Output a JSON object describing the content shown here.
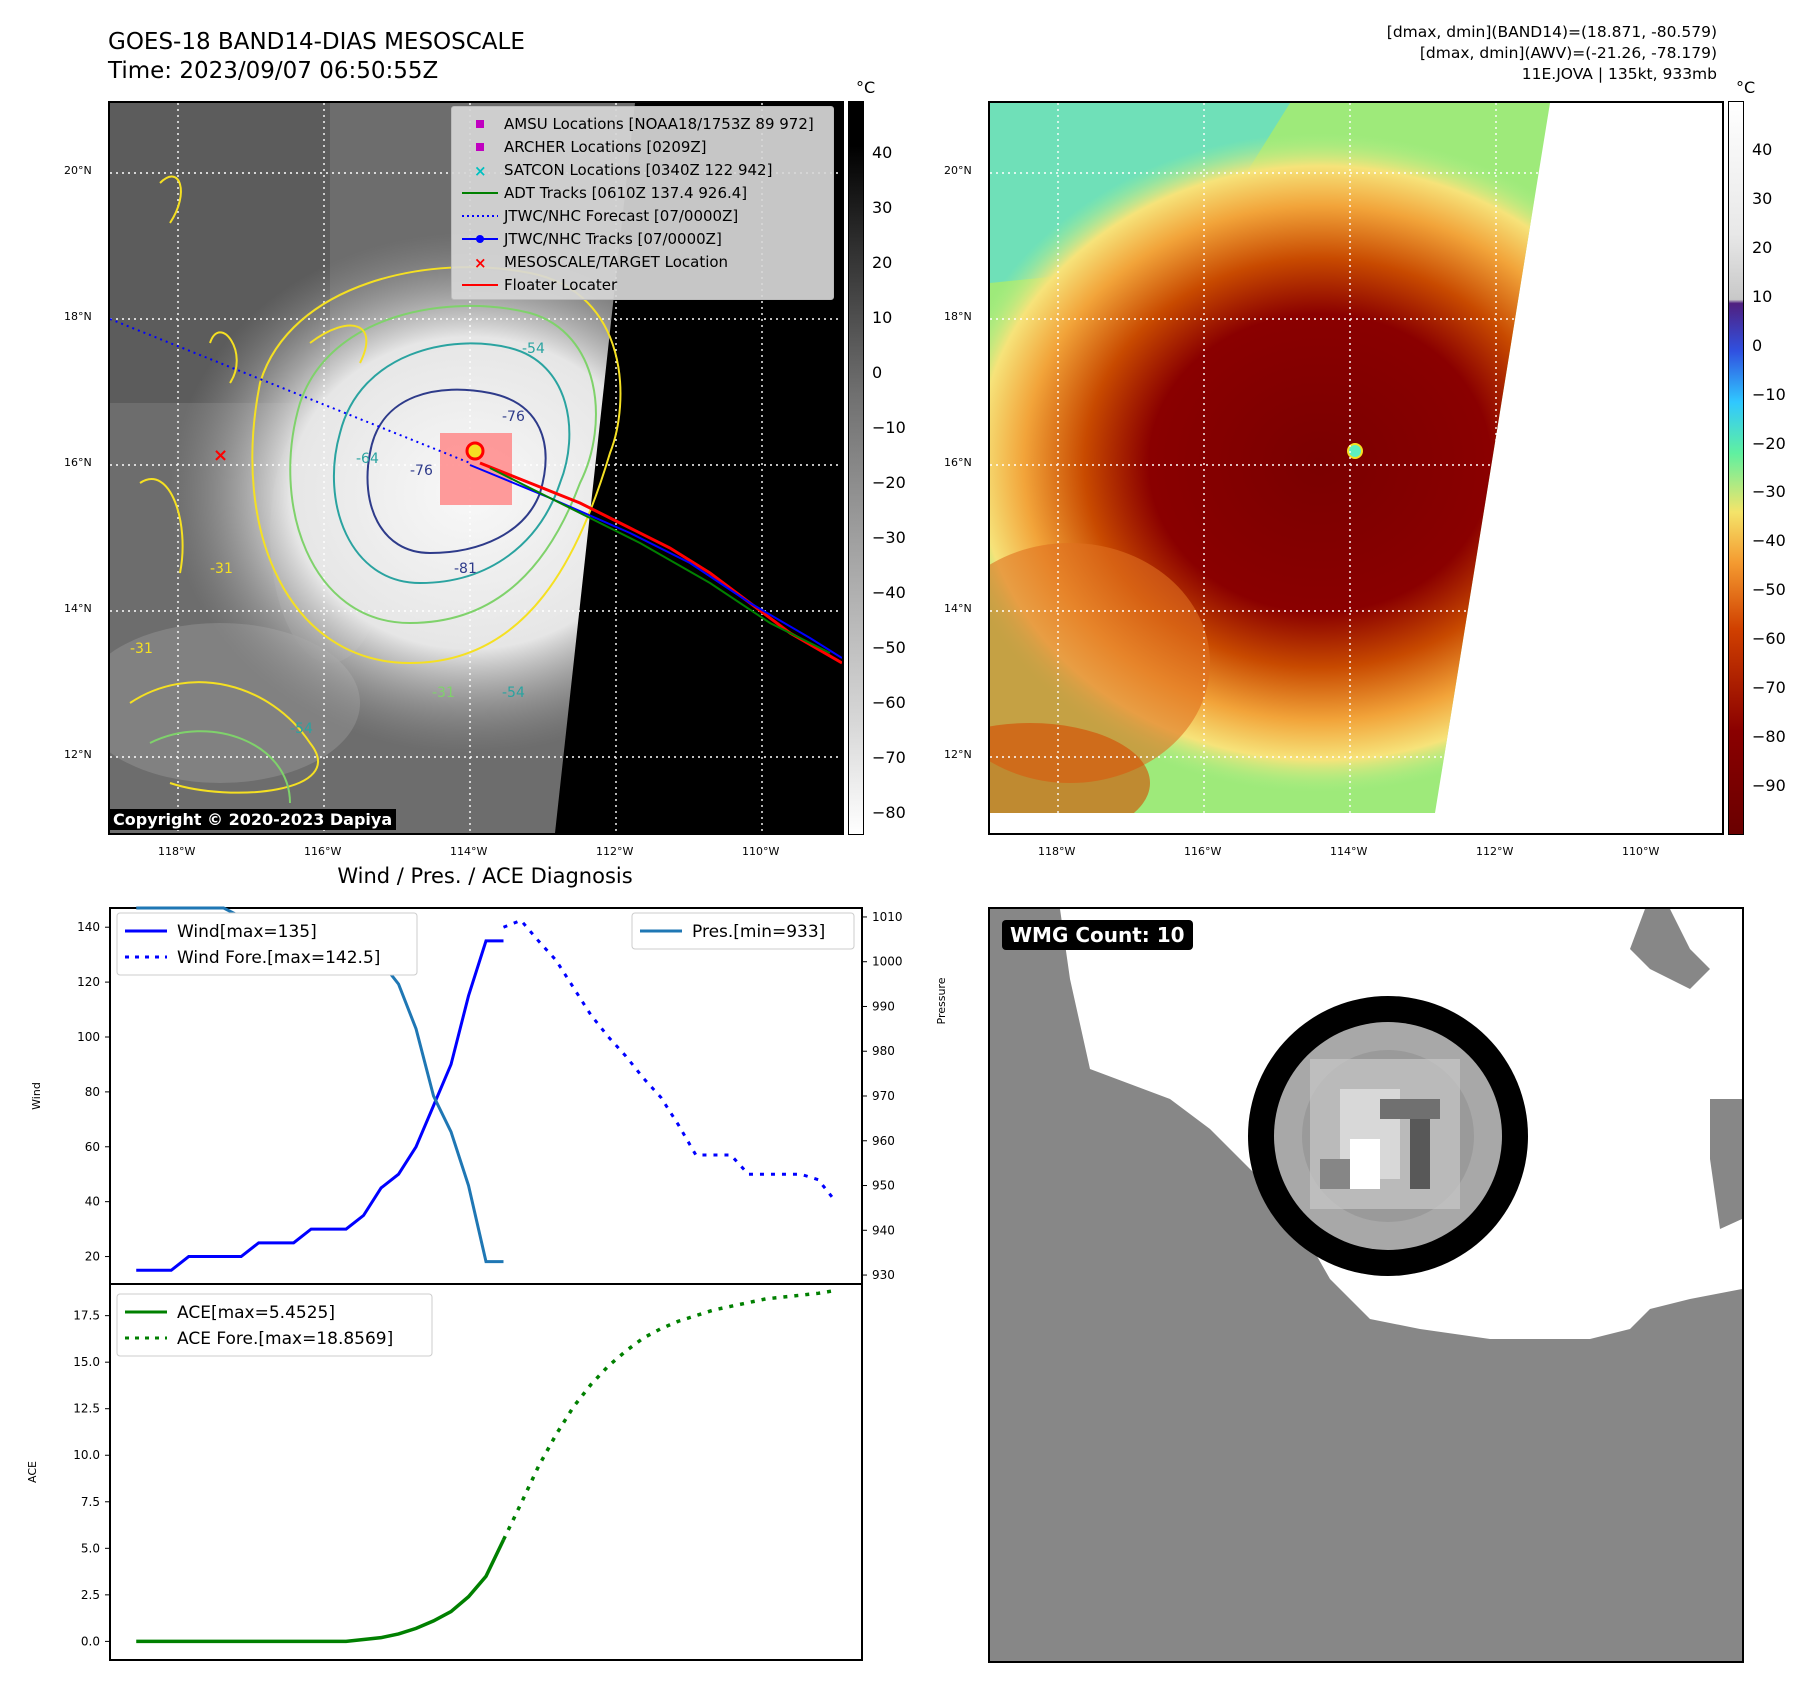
{
  "header": {
    "title_line1": "GOES-18 BAND14-DIAS MESOSCALE",
    "title_line2": "Time: 2023/09/07 06:50:55Z",
    "info_line1": "[dmax, dmin](BAND14)=(18.871, -80.579)",
    "info_line2": "[dmax, dmin](AWV)=(-21.26, -78.179)",
    "info_line3": "11E.JOVA | 135kt, 933mb"
  },
  "map": {
    "lat_labels": [
      "20°N",
      "18°N",
      "16°N",
      "14°N",
      "12°N"
    ],
    "lon_labels": [
      "118°W",
      "116°W",
      "114°W",
      "112°W",
      "110°W"
    ],
    "copyright": "Copyright © 2020-2023 Dapiya",
    "contour_labels": [
      "-76",
      "-76",
      "-64",
      "-81",
      "-54",
      "-54",
      "-31",
      "-31",
      "-54",
      "-31"
    ],
    "legend": [
      {
        "label": "AMSU Locations [NOAA18/1753Z 89 972]",
        "symbol": "square",
        "color": "#c000c0"
      },
      {
        "label": "ARCHER Locations [0209Z]",
        "symbol": "square",
        "color": "#c000c0"
      },
      {
        "label": "SATCON Locations [0340Z 122 942]",
        "symbol": "x",
        "color": "#00c0c0"
      },
      {
        "label": "ADT Tracks [0610Z 137.4 926.4]",
        "symbol": "line",
        "color": "#008000"
      },
      {
        "label": "JTWC/NHC Forecast [07/0000Z]",
        "symbol": "dotted",
        "color": "#0000ff"
      },
      {
        "label": "JTWC/NHC Tracks [07/0000Z]",
        "symbol": "line-dot",
        "color": "#0000ff"
      },
      {
        "label": "MESOSCALE/TARGET Location",
        "symbol": "x",
        "color": "#ff0000"
      },
      {
        "label": "Floater Locater",
        "symbol": "line",
        "color": "#ff0000"
      }
    ]
  },
  "colorbar_left": {
    "unit": "°C",
    "ticks": [
      "40",
      "30",
      "20",
      "10",
      "0",
      "−10",
      "−20",
      "−30",
      "−40",
      "−50",
      "−60",
      "−70",
      "−80"
    ]
  },
  "colorbar_right": {
    "unit": "°C",
    "ticks": [
      "40",
      "30",
      "20",
      "10",
      "0",
      "−10",
      "−20",
      "−30",
      "−40",
      "−50",
      "−60",
      "−70",
      "−80",
      "−90"
    ]
  },
  "wmg": {
    "label": "WMG Count: 10"
  },
  "chart_data": [
    {
      "type": "line",
      "title": "Wind / Pres. / ACE Diagnosis",
      "ylabel": "Wind",
      "ylabel_right": "Pressure",
      "ylim": [
        10,
        147
      ],
      "ylim_right": [
        928,
        1012
      ],
      "yticks": [
        20,
        40,
        60,
        80,
        100,
        120,
        140
      ],
      "yticks_right": [
        930,
        940,
        950,
        960,
        970,
        980,
        990,
        1000,
        1010
      ],
      "series": [
        {
          "name": "Wind[max=135]",
          "style": "solid",
          "color": "#0000ff",
          "x": [
            0,
            1,
            2,
            3,
            4,
            5,
            6,
            7,
            8,
            9,
            10,
            11,
            12,
            13,
            14,
            15,
            16,
            17,
            18,
            19,
            20,
            21
          ],
          "values": [
            15,
            15,
            15,
            20,
            20,
            20,
            20,
            25,
            25,
            25,
            30,
            30,
            30,
            35,
            45,
            50,
            60,
            75,
            90,
            115,
            135,
            135
          ]
        },
        {
          "name": "Wind Fore.[max=142.5]",
          "style": "dotted",
          "color": "#0000ff",
          "x": [
            21,
            22,
            23,
            24,
            25,
            26,
            27,
            28,
            29,
            30,
            31,
            32,
            33,
            34,
            35,
            36,
            37,
            38,
            39,
            40
          ],
          "values": [
            140,
            142.5,
            135,
            128,
            118,
            108,
            100,
            93,
            85,
            78,
            68,
            57,
            57,
            57,
            50,
            50,
            50,
            50,
            48,
            40
          ]
        },
        {
          "name": "Pres.[min=933]",
          "style": "solid",
          "color": "#1f77b4",
          "axis": "right",
          "x": [
            0,
            1,
            2,
            3,
            4,
            5,
            6,
            7,
            8,
            9,
            10,
            11,
            12,
            13,
            14,
            15,
            16,
            17,
            18,
            19,
            20,
            21
          ],
          "values": [
            1012,
            1012,
            1012,
            1012,
            1012,
            1012,
            1010,
            1010,
            1010,
            1009,
            1008,
            1007,
            1006,
            1004,
            1000,
            995,
            985,
            970,
            962,
            950,
            933,
            933
          ]
        }
      ]
    },
    {
      "type": "line",
      "ylabel": "ACE",
      "ylim": [
        -1,
        19.2
      ],
      "yticks": [
        0,
        2.5,
        5,
        7.5,
        10,
        12.5,
        15,
        17.5
      ],
      "ytick_labels": [
        "0.0",
        "2.5",
        "5.0",
        "7.5",
        "10.0",
        "12.5",
        "15.0",
        "17.5"
      ],
      "series": [
        {
          "name": "ACE[max=5.4525]",
          "style": "solid",
          "color": "#008000",
          "x": [
            0,
            2,
            4,
            6,
            8,
            10,
            12,
            13,
            14,
            15,
            16,
            17,
            18,
            19,
            20,
            21
          ],
          "values": [
            0,
            0,
            0,
            0,
            0,
            0,
            0,
            0.1,
            0.2,
            0.4,
            0.7,
            1.1,
            1.6,
            2.4,
            3.5,
            5.4525
          ]
        },
        {
          "name": "ACE Fore.[max=18.8569]",
          "style": "dotted",
          "color": "#008000",
          "x": [
            21,
            22,
            23,
            24,
            25,
            26,
            27,
            28,
            29,
            30,
            31,
            32,
            33,
            34,
            35,
            36,
            37,
            38,
            39,
            40
          ],
          "values": [
            5.4525,
            7.4,
            9.4,
            11.1,
            12.6,
            13.8,
            14.8,
            15.6,
            16.3,
            16.8,
            17.2,
            17.5,
            17.8,
            18.0,
            18.2,
            18.4,
            18.5,
            18.6,
            18.7,
            18.8569
          ]
        }
      ]
    }
  ]
}
